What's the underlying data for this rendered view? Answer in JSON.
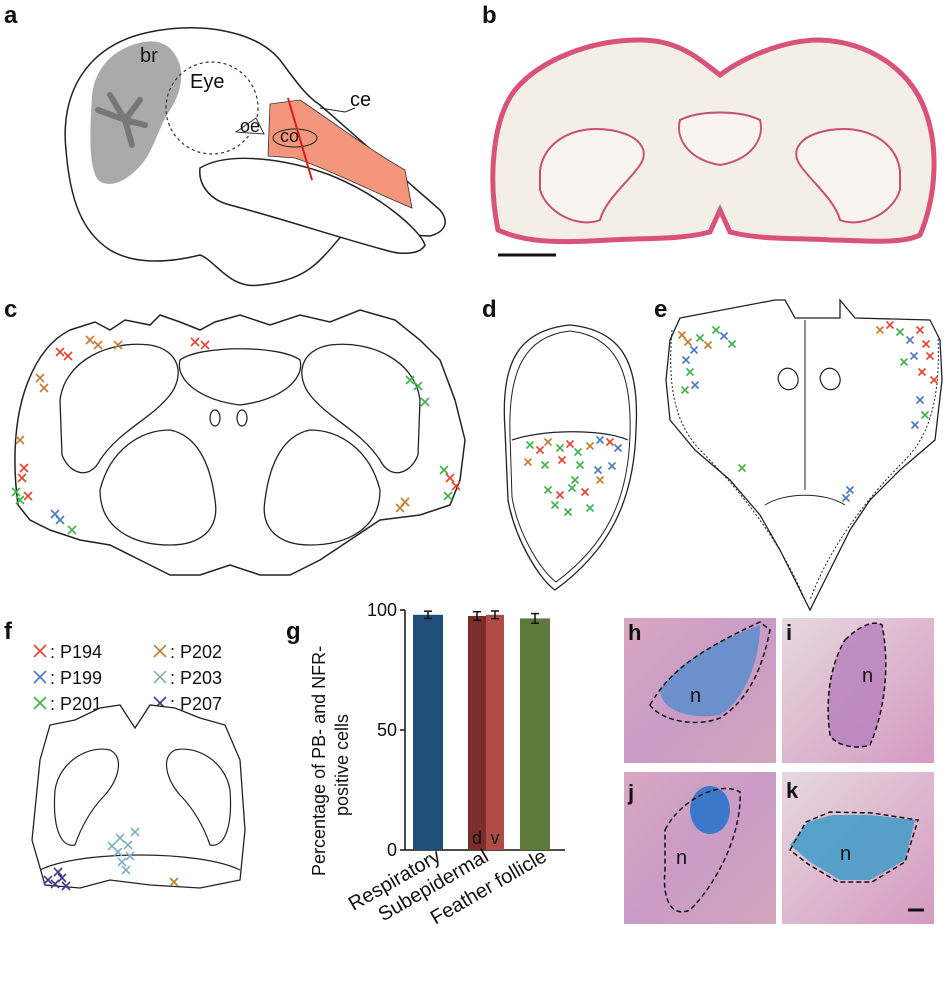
{
  "panels": {
    "a": {
      "letter": "a",
      "labels": {
        "br": "br",
        "eye": "Eye",
        "ce": "ce",
        "oe": "oe",
        "co": "co"
      }
    },
    "b": {
      "letter": "b"
    },
    "c": {
      "letter": "c"
    },
    "d": {
      "letter": "d"
    },
    "e": {
      "letter": "e"
    },
    "f": {
      "letter": "f"
    },
    "g": {
      "letter": "g"
    },
    "h": {
      "letter": "h",
      "nucleus": "n"
    },
    "i": {
      "letter": "i",
      "nucleus": "n"
    },
    "j": {
      "letter": "j",
      "nucleus": "n"
    },
    "k": {
      "letter": "k",
      "nucleus": "n"
    }
  },
  "legend": [
    {
      "label": ": P194",
      "color": "#e8412e"
    },
    {
      "label": ": P202",
      "color": "#c77b30"
    },
    {
      "label": ": P199",
      "color": "#4a78c2"
    },
    {
      "label": ": P203",
      "color": "#7fb1bd"
    },
    {
      "label": ": P201",
      "color": "#3cb44a"
    },
    {
      "label": ": P207",
      "color": "#3b3a8a"
    }
  ],
  "chart_data": {
    "type": "bar",
    "categories": [
      "Respiratory",
      "Subepidermal",
      "Feather follicle"
    ],
    "bars": [
      {
        "category": "Respiratory",
        "sub": "",
        "value": 98,
        "err": 1.5,
        "color": "#1f4e79"
      },
      {
        "category": "Subepidermal",
        "sub": "d",
        "value": 97.5,
        "err": 1.8,
        "color": "#7a2d2a"
      },
      {
        "category": "Subepidermal",
        "sub": "v",
        "value": 98,
        "err": 1.6,
        "color": "#b04a44"
      },
      {
        "category": "Feather follicle",
        "sub": "",
        "value": 96.5,
        "err": 2.0,
        "color": "#5d7a3b"
      }
    ],
    "sub_labels": {
      "d": "d",
      "v": "v"
    },
    "ylabel_line1": "Percentage of PB- and NFR-",
    "ylabel_line2": "positive cells",
    "yticks": [
      "0",
      "50",
      "100"
    ],
    "ylim": [
      0,
      100
    ]
  }
}
